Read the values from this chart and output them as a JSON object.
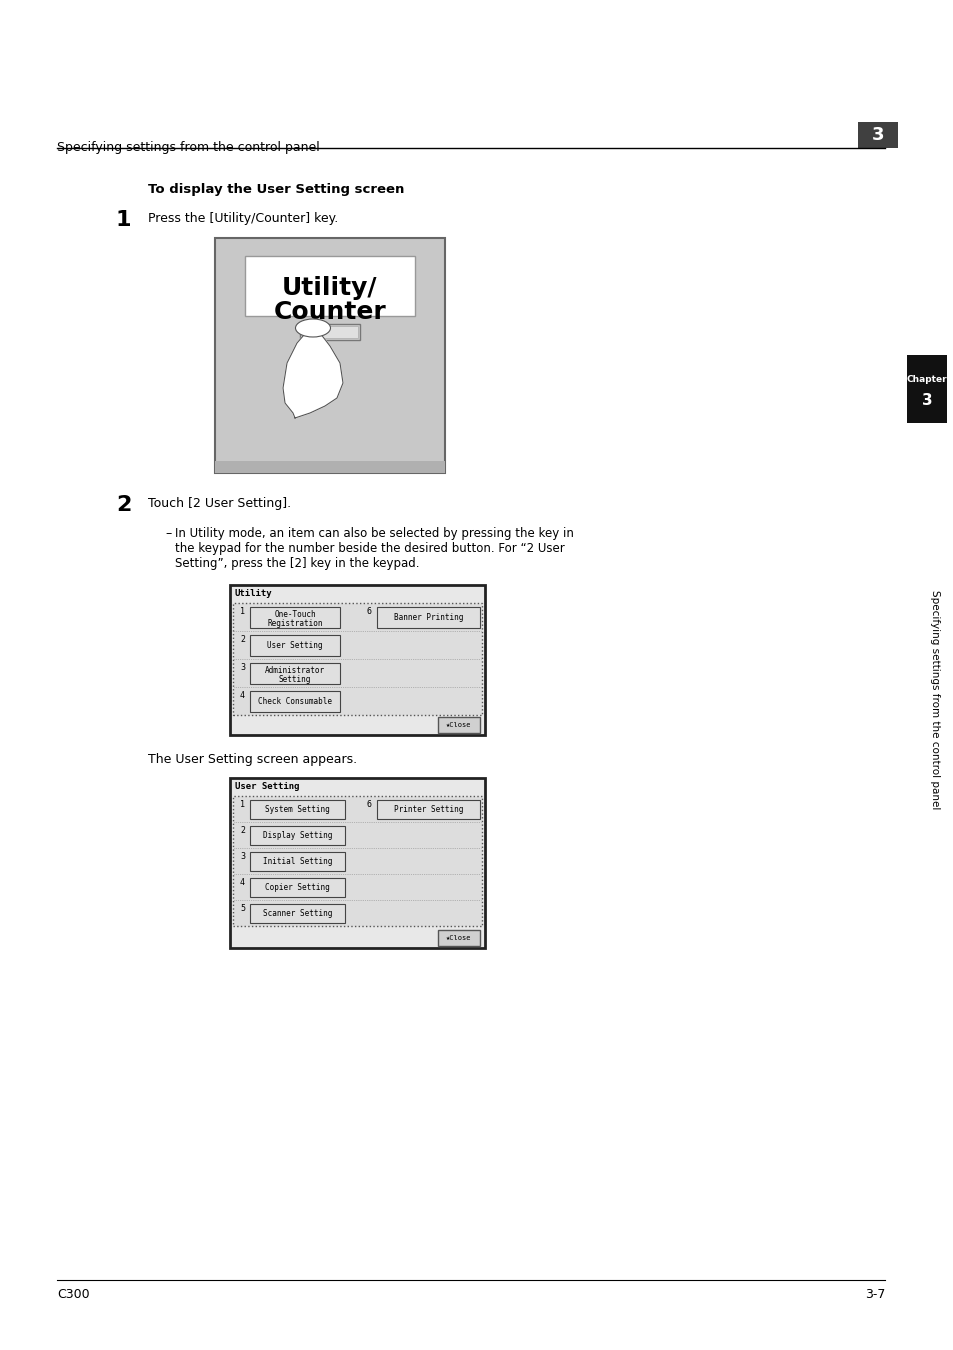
{
  "bg_color": "#ffffff",
  "header_text": "Specifying settings from the control panel",
  "header_chapter": "3",
  "step1_bold": "To display the User Setting screen",
  "step1_num": "1",
  "step1_text": "Press the [Utility/Counter] key.",
  "step2_num": "2",
  "step2_text": "Touch [2 User Setting].",
  "step2_bullet_line1": "In Utility mode, an item can also be selected by pressing the key in",
  "step2_bullet_line2": "the keypad for the number beside the desired button. For “2 User",
  "step2_bullet_line3": "Setting”, press the [2] key in the keypad.",
  "utility_screen_label": "The User Setting screen appears.",
  "sidebar_text": "Specifying settings from the control panel",
  "sidebar_chapter": "Chapter 3",
  "footer_left": "C300",
  "footer_right": "3-7",
  "util_rows": [
    [
      "1",
      "One-Touch\nRegistration",
      "6",
      "Banner Printing"
    ],
    [
      "2",
      "User Setting",
      "",
      ""
    ],
    [
      "3",
      "Administrator\nSetting",
      "",
      ""
    ],
    [
      "4",
      "Check Consumable",
      "",
      ""
    ]
  ],
  "user_rows": [
    [
      "1",
      "System Setting",
      "6",
      "Printer Setting"
    ],
    [
      "2",
      "Display Setting",
      "",
      ""
    ],
    [
      "3",
      "Initial Setting",
      "",
      ""
    ],
    [
      "4",
      "Copier Setting",
      "",
      ""
    ],
    [
      "5",
      "Scanner Setting",
      "",
      ""
    ]
  ]
}
